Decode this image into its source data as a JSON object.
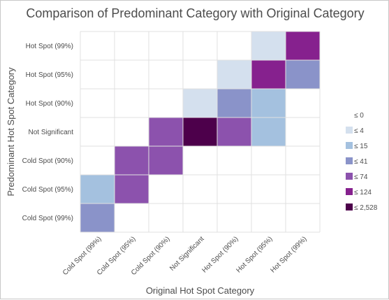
{
  "chart_data": {
    "type": "heatmap",
    "title": "Comparison of Predominant Category with Original Category",
    "xlabel": "Original Hot Spot Category",
    "ylabel": "Predominant Hot Spot Category",
    "x_categories": [
      "Cold Spot (99%)",
      "Cold Spot (95%)",
      "Cold Spot (90%)",
      "Not Significant",
      "Hot Spot (90%)",
      "Hot Spot (95%)",
      "Hot Spot (99%)"
    ],
    "y_categories": [
      "Hot Spot (99%)",
      "Hot Spot (95%)",
      "Hot Spot (90%)",
      "Not Significant",
      "Cold Spot (90%)",
      "Cold Spot (95%)",
      "Cold Spot (99%)"
    ],
    "legend": {
      "placement": "right",
      "classes": [
        {
          "label": "≤ 0",
          "color": "#ffffff"
        },
        {
          "label": "≤ 4",
          "color": "#d4e0ee"
        },
        {
          "label": "≤ 15",
          "color": "#a4c1df"
        },
        {
          "label": "≤ 41",
          "color": "#8a93c9"
        },
        {
          "label": "≤ 74",
          "color": "#8c52ad"
        },
        {
          "label": "≤ 124",
          "color": "#86218e"
        },
        {
          "label": "≤ 2,528",
          "color": "#4d004b"
        }
      ]
    },
    "cells_class_index": [
      [
        0,
        0,
        0,
        0,
        0,
        1,
        5
      ],
      [
        0,
        0,
        0,
        0,
        1,
        5,
        3
      ],
      [
        0,
        0,
        0,
        1,
        3,
        2,
        0
      ],
      [
        0,
        0,
        4,
        6,
        4,
        2,
        0
      ],
      [
        0,
        4,
        4,
        0,
        0,
        0,
        0
      ],
      [
        2,
        4,
        0,
        0,
        0,
        0,
        0
      ],
      [
        3,
        0,
        0,
        0,
        0,
        0,
        0
      ]
    ],
    "grid": true
  }
}
